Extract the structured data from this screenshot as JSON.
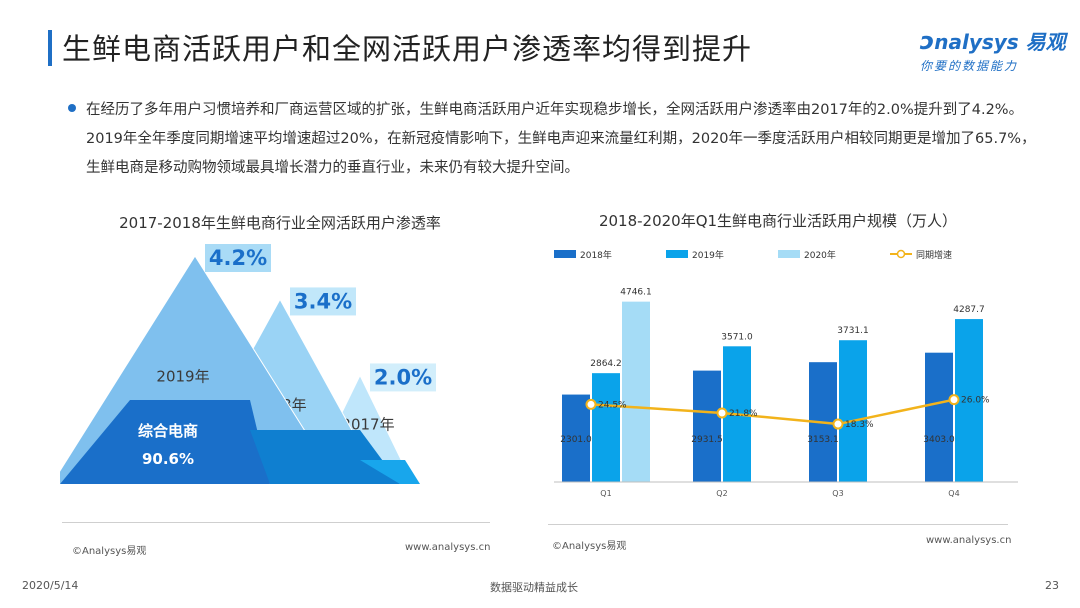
{
  "header": {
    "title": "生鲜电商活跃用户和全网活跃用户渗透率均得到提升",
    "logo_top": "nalysys 易观",
    "logo_bottom": "你要的数据能力"
  },
  "summary": "在经历了多年用户习惯培养和厂商运营区域的扩张，生鲜电商活跃用户近年实现稳步增长，全网活跃用户渗透率由2017年的2.0%提升到了4.2%。2019年全年季度同期增速平均增速超过20%，在新冠疫情影响下，生鲜电声迎来流量红利期，2020年一季度活跃用户相较同期更是增加了65.7%，生鲜电商是移动购物领域最具增长潜力的垂直行业，未来仍有较大提升空间。",
  "left_chart": {
    "title": "2017-2018年生鲜电商行业全网活跃用户渗透率",
    "source": "©Analysys易观",
    "site": "www.analysys.cn",
    "base_label": "综合电商",
    "base_value": "90.6%"
  },
  "right_chart": {
    "title": "2018-2020年Q1生鲜电商行业活跃用户规模（万人）",
    "source": "©Analysys易观",
    "site": "www.analysys.cn"
  },
  "footer": {
    "date": "2020/5/14",
    "slogan": "数据驱动精益成长",
    "page": "23"
  },
  "colors": {
    "accent": "#1f6fc5",
    "bar_2018": "#1a6fc9",
    "bar_2019": "#0aa3ea",
    "bar_2020": "#a5dcf6",
    "line": "#f2b31b"
  },
  "chart_data": [
    {
      "type": "area",
      "title": "2017-2018年生鲜电商行业全网活跃用户渗透率",
      "categories": [
        "2019年",
        "2018年",
        "2017年"
      ],
      "values": [
        4.2,
        3.4,
        2.0
      ],
      "value_labels": [
        "4.2%",
        "3.4%",
        "2.0%"
      ],
      "base_label": "综合电商",
      "base_value": 90.6,
      "base_value_label": "90.6%"
    },
    {
      "type": "bar",
      "title": "2018-2020年Q1生鲜电商行业活跃用户规模（万人）",
      "categories": [
        "Q1",
        "Q2",
        "Q3",
        "Q4"
      ],
      "series": [
        {
          "name": "2018年",
          "kind": "bar",
          "values": [
            2301.0,
            2931.5,
            3153.1,
            3403.0
          ],
          "labels": [
            "2301.0",
            "2931.5",
            "3153.1",
            "3403.0"
          ]
        },
        {
          "name": "2019年",
          "kind": "bar",
          "values": [
            2864.2,
            3571.0,
            3731.1,
            4287.7
          ],
          "labels": [
            "2864.2",
            "3571.0",
            "3731.1",
            "4287.7"
          ]
        },
        {
          "name": "2020年",
          "kind": "bar",
          "values": [
            4746.1,
            null,
            null,
            null
          ],
          "labels": [
            "4746.1",
            "",
            "",
            ""
          ]
        },
        {
          "name": "同期增速",
          "kind": "line",
          "values": [
            24.5,
            21.8,
            18.3,
            26.0
          ],
          "labels": [
            "24.5%",
            "21.8%",
            "18.3%",
            "26.0%"
          ]
        }
      ],
      "ylim": [
        0,
        5000
      ],
      "y2lim": [
        0,
        60
      ],
      "legend": "top"
    }
  ]
}
